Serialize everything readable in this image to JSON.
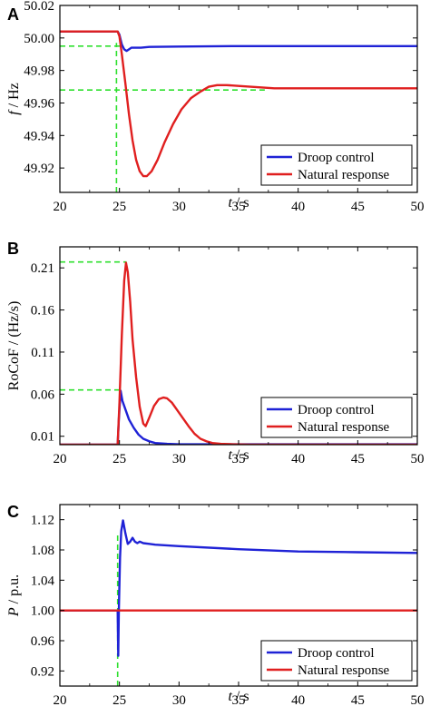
{
  "colors": {
    "droop": "#1f22d6",
    "natural": "#e01f1f",
    "guide": "#2ee02e",
    "axis": "#000000"
  },
  "chart_data": [
    {
      "panel": "A",
      "type": "line",
      "xlabel": "t / s",
      "ylabel": "f / Hz",
      "xlim": [
        20,
        50
      ],
      "ylim": [
        49.905,
        50.02
      ],
      "xticks": [
        "20",
        "25",
        "30",
        "35",
        "40",
        "45",
        "50"
      ],
      "yticks": [
        "49.92",
        "49.94",
        "49.96",
        "49.98",
        "50.00",
        "50.02"
      ],
      "legend_position": "bottom-right",
      "series": [
        {
          "name": "Droop control",
          "color": "#1f22d6",
          "x": [
            20,
            24.85,
            25.0,
            25.2,
            25.4,
            25.6,
            25.8,
            26.0,
            26.3,
            26.8,
            27.5,
            30,
            35,
            40,
            45,
            50
          ],
          "y": [
            50.004,
            50.004,
            50.002,
            49.996,
            49.993,
            49.992,
            49.993,
            49.994,
            49.994,
            49.994,
            49.9945,
            49.9947,
            49.995,
            49.995,
            49.995,
            49.995
          ]
        },
        {
          "name": "Natural response",
          "color": "#e01f1f",
          "x": [
            20,
            24.85,
            25.0,
            25.2,
            25.5,
            25.8,
            26.1,
            26.4,
            26.7,
            27.0,
            27.3,
            27.7,
            28.2,
            28.8,
            29.5,
            30.2,
            31.0,
            31.8,
            32.5,
            33.2,
            34.0,
            35.0,
            36.0,
            37.0,
            38.0,
            40.0,
            45.0,
            50.0
          ],
          "y": [
            50.004,
            50.004,
            50.001,
            49.99,
            49.972,
            49.953,
            49.937,
            49.925,
            49.918,
            49.915,
            49.915,
            49.918,
            49.925,
            49.936,
            49.947,
            49.956,
            49.963,
            49.967,
            49.97,
            49.971,
            49.971,
            49.9705,
            49.97,
            49.9695,
            49.969,
            49.969,
            49.969,
            49.969
          ]
        }
      ],
      "guides": [
        {
          "orientation": "h",
          "y": 49.995,
          "x0": 20,
          "x1": 25.2
        },
        {
          "orientation": "h",
          "y": 49.968,
          "x0": 20,
          "x1": 37.2
        },
        {
          "orientation": "v",
          "x": 24.75,
          "y0": 49.905,
          "y1": 49.997
        }
      ]
    },
    {
      "panel": "B",
      "type": "line",
      "xlabel": "t / s",
      "ylabel": "RoCoF / (Hz/s)",
      "xlim": [
        20,
        50
      ],
      "ylim": [
        0.0,
        0.235
      ],
      "xticks": [
        "20",
        "25",
        "30",
        "35",
        "40",
        "45",
        "50"
      ],
      "yticks": [
        "0.01",
        "0.06",
        "0.11",
        "0.16",
        "0.21"
      ],
      "legend_position": "bottom-right",
      "series": [
        {
          "name": "Droop control",
          "color": "#1f22d6",
          "x": [
            20,
            24.85,
            24.95,
            25.1,
            25.25,
            25.5,
            25.8,
            26.2,
            26.6,
            27.0,
            27.5,
            28.0,
            29.0,
            30.0,
            35.0,
            40.0,
            50.0
          ],
          "y": [
            0.0,
            0.0,
            0.03,
            0.064,
            0.052,
            0.042,
            0.03,
            0.02,
            0.012,
            0.007,
            0.004,
            0.002,
            0.001,
            0.0005,
            0.0005,
            0.0005,
            0.0005
          ],
          "note": ""
        },
        {
          "name": "Natural response",
          "color": "#e01f1f",
          "x": [
            20,
            24.85,
            25.0,
            25.2,
            25.4,
            25.55,
            25.7,
            25.9,
            26.1,
            26.4,
            26.7,
            27.0,
            27.2,
            27.5,
            27.9,
            28.3,
            28.7,
            29.0,
            29.4,
            29.8,
            30.3,
            30.8,
            31.3,
            31.8,
            32.3,
            32.8,
            33.5,
            34.5,
            36.0,
            40.0,
            50.0
          ],
          "y": [
            0.0,
            0.0,
            0.05,
            0.13,
            0.195,
            0.216,
            0.205,
            0.17,
            0.125,
            0.08,
            0.045,
            0.025,
            0.022,
            0.032,
            0.046,
            0.054,
            0.056,
            0.055,
            0.05,
            0.042,
            0.032,
            0.022,
            0.013,
            0.007,
            0.004,
            0.002,
            0.001,
            0.0005,
            0.0,
            0.0,
            0.0
          ]
        }
      ],
      "guides": [
        {
          "orientation": "h",
          "y": 0.217,
          "x0": 20,
          "x1": 25.6
        },
        {
          "orientation": "h",
          "y": 0.065,
          "x0": 20,
          "x1": 25.2
        }
      ]
    },
    {
      "panel": "C",
      "type": "line",
      "xlabel": "t / s",
      "ylabel": "P / p.u.",
      "xlim": [
        20,
        50
      ],
      "ylim": [
        0.9,
        1.14
      ],
      "xticks": [
        "20",
        "25",
        "30",
        "35",
        "40",
        "45",
        "50"
      ],
      "yticks": [
        "0.92",
        "0.96",
        "1.00",
        "1.04",
        "1.08",
        "1.12"
      ],
      "legend_position": "bottom-right",
      "series": [
        {
          "name": "Droop control",
          "color": "#1f22d6",
          "x": [
            20,
            24.85,
            24.9,
            24.95,
            25.05,
            25.15,
            25.3,
            25.5,
            25.7,
            25.9,
            26.1,
            26.3,
            26.5,
            26.7,
            27.0,
            27.5,
            28.0,
            30.0,
            35.0,
            40.0,
            45.0,
            50.0
          ],
          "y": [
            1.0,
            1.0,
            0.94,
            1.0,
            1.07,
            1.105,
            1.119,
            1.102,
            1.088,
            1.091,
            1.096,
            1.091,
            1.089,
            1.091,
            1.089,
            1.088,
            1.087,
            1.085,
            1.081,
            1.078,
            1.077,
            1.076
          ]
        },
        {
          "name": "Natural response",
          "color": "#e01f1f",
          "x": [
            20,
            50
          ],
          "y": [
            1.0,
            1.0
          ]
        }
      ],
      "guides": [
        {
          "orientation": "v",
          "x": 24.85,
          "y0": 0.9,
          "y1": 1.1
        }
      ]
    }
  ]
}
